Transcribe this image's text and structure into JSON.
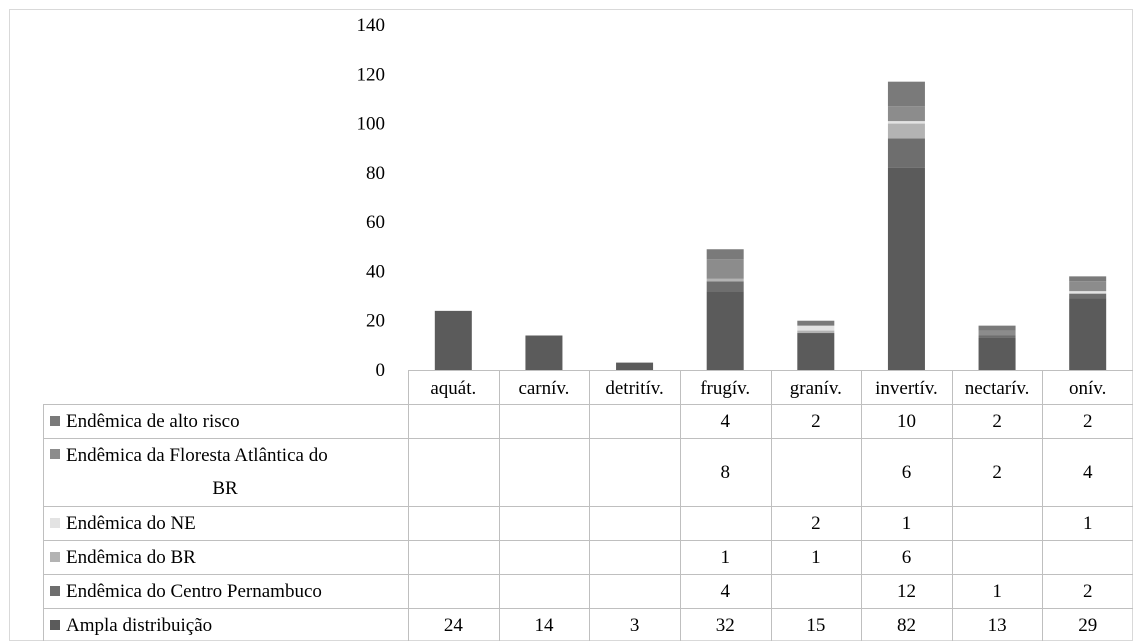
{
  "chart_data": {
    "type": "bar",
    "stacked": true,
    "categories": [
      "aquát.",
      "carnív.",
      "detritív.",
      "frugív.",
      "granív.",
      "invertív.",
      "nectarív.",
      "onív."
    ],
    "series": [
      {
        "name": "Ampla distribuição",
        "color": "#5b5b5b",
        "values": [
          24,
          14,
          3,
          32,
          15,
          82,
          13,
          29
        ]
      },
      {
        "name": "Endêmica do Centro Pernambuco",
        "color": "#6e6e6e",
        "values": [
          null,
          null,
          null,
          4,
          null,
          12,
          1,
          2
        ]
      },
      {
        "name": "Endêmica do BR",
        "color": "#b3b3b3",
        "values": [
          null,
          null,
          null,
          1,
          1,
          6,
          null,
          null
        ]
      },
      {
        "name": "Endêmica do NE",
        "color": "#e3e3e3",
        "values": [
          null,
          null,
          null,
          null,
          2,
          1,
          null,
          1
        ]
      },
      {
        "name": "Endêmica da Floresta Atlântica do BR",
        "color": "#8c8c8c",
        "values": [
          null,
          null,
          null,
          8,
          null,
          6,
          2,
          4
        ]
      },
      {
        "name": "Endêmica de alto risco",
        "color": "#7a7a7a",
        "values": [
          null,
          null,
          null,
          4,
          2,
          10,
          2,
          2
        ]
      }
    ],
    "table_row_order": [
      "Endêmica de alto risco",
      "Endêmica da Floresta Atlântica do BR",
      "Endêmica do NE",
      "Endêmica do BR",
      "Endêmica do Centro Pernambuco",
      "Ampla distribuição"
    ],
    "ylim": [
      0,
      140
    ],
    "yticks": [
      0,
      20,
      40,
      60,
      80,
      100,
      120,
      140
    ],
    "grid": false,
    "legend": "data-table-below"
  }
}
